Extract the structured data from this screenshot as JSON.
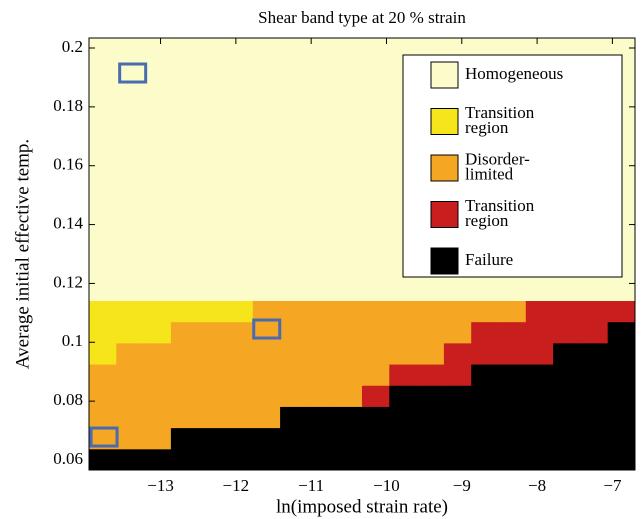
{
  "chart_data": {
    "type": "heatmap",
    "title": "Shear band type at 20 % strain",
    "x_label": "ln(imposed strain rate)",
    "y_label": "Average initial effective temp.",
    "xlim": [
      -13.95,
      -6.7
    ],
    "ylim": [
      0.0566,
      0.2034
    ],
    "xticks": [
      {
        "value": -13,
        "label": "−13"
      },
      {
        "value": -12,
        "label": "−12"
      },
      {
        "value": -11,
        "label": "−11"
      },
      {
        "value": -10,
        "label": "−10"
      },
      {
        "value": -9,
        "label": "−9"
      },
      {
        "value": -8,
        "label": "−8"
      },
      {
        "value": -7,
        "label": "−7"
      }
    ],
    "yticks": [
      0.06,
      0.08,
      0.1,
      0.12,
      0.14,
      0.16,
      0.18,
      0.2
    ],
    "x_edges": [
      -13.95,
      -13.5875,
      -13.225,
      -12.8625,
      -12.5,
      -12.1375,
      -11.775,
      -11.4125,
      -11.05,
      -10.6875,
      -10.325,
      -9.9625,
      -9.6,
      -9.2375,
      -8.875,
      -8.5125,
      -8.15,
      -7.7875,
      -7.425,
      -7.0625,
      -6.7
    ],
    "y_edges": [
      0.0566,
      0.0638,
      0.071,
      0.0782,
      0.0854,
      0.0926,
      0.0998,
      0.107,
      0.1142,
      0.2034
    ],
    "categories": [
      [
        "Homogeneous"
      ],
      [
        "Transition",
        "region"
      ],
      [
        "Disorder-",
        "limited"
      ],
      [
        "Transition",
        "region"
      ],
      [
        "Failure"
      ]
    ],
    "colors": [
      "#fcfccb",
      "#f6e51b",
      "#f5a623",
      "#c81e1e",
      "#000000"
    ],
    "values": [
      [
        4,
        4,
        4,
        4,
        4,
        4,
        4,
        4,
        4,
        4,
        4,
        4,
        4,
        4,
        4,
        4,
        4,
        4,
        4,
        4
      ],
      [
        2,
        2,
        2,
        4,
        4,
        4,
        4,
        4,
        4,
        4,
        4,
        4,
        4,
        4,
        4,
        4,
        4,
        4,
        4,
        4
      ],
      [
        2,
        2,
        2,
        2,
        2,
        2,
        2,
        4,
        4,
        4,
        4,
        4,
        4,
        4,
        4,
        4,
        4,
        4,
        4,
        4
      ],
      [
        2,
        2,
        2,
        2,
        2,
        2,
        2,
        2,
        2,
        2,
        3,
        4,
        4,
        4,
        4,
        4,
        4,
        4,
        4,
        4
      ],
      [
        2,
        2,
        2,
        2,
        2,
        2,
        2,
        2,
        2,
        2,
        2,
        3,
        3,
        3,
        4,
        4,
        4,
        4,
        4,
        4
      ],
      [
        1,
        2,
        2,
        2,
        2,
        2,
        2,
        2,
        2,
        2,
        2,
        2,
        2,
        3,
        3,
        3,
        3,
        4,
        4,
        4
      ],
      [
        1,
        1,
        1,
        2,
        2,
        2,
        2,
        2,
        2,
        2,
        2,
        2,
        2,
        2,
        3,
        3,
        3,
        3,
        3,
        4
      ],
      [
        1,
        1,
        1,
        1,
        1,
        1,
        2,
        2,
        2,
        2,
        2,
        2,
        2,
        2,
        2,
        2,
        3,
        3,
        3,
        3
      ],
      [
        0,
        0,
        0,
        0,
        0,
        0,
        0,
        0,
        0,
        0,
        0,
        0,
        0,
        0,
        0,
        0,
        0,
        0,
        0,
        0
      ]
    ],
    "markers": {
      "color": "#4a6bb0",
      "x": [
        -13.37,
        -11.59,
        -13.75
      ],
      "y": [
        0.1915,
        0.1045,
        0.0678
      ]
    }
  }
}
